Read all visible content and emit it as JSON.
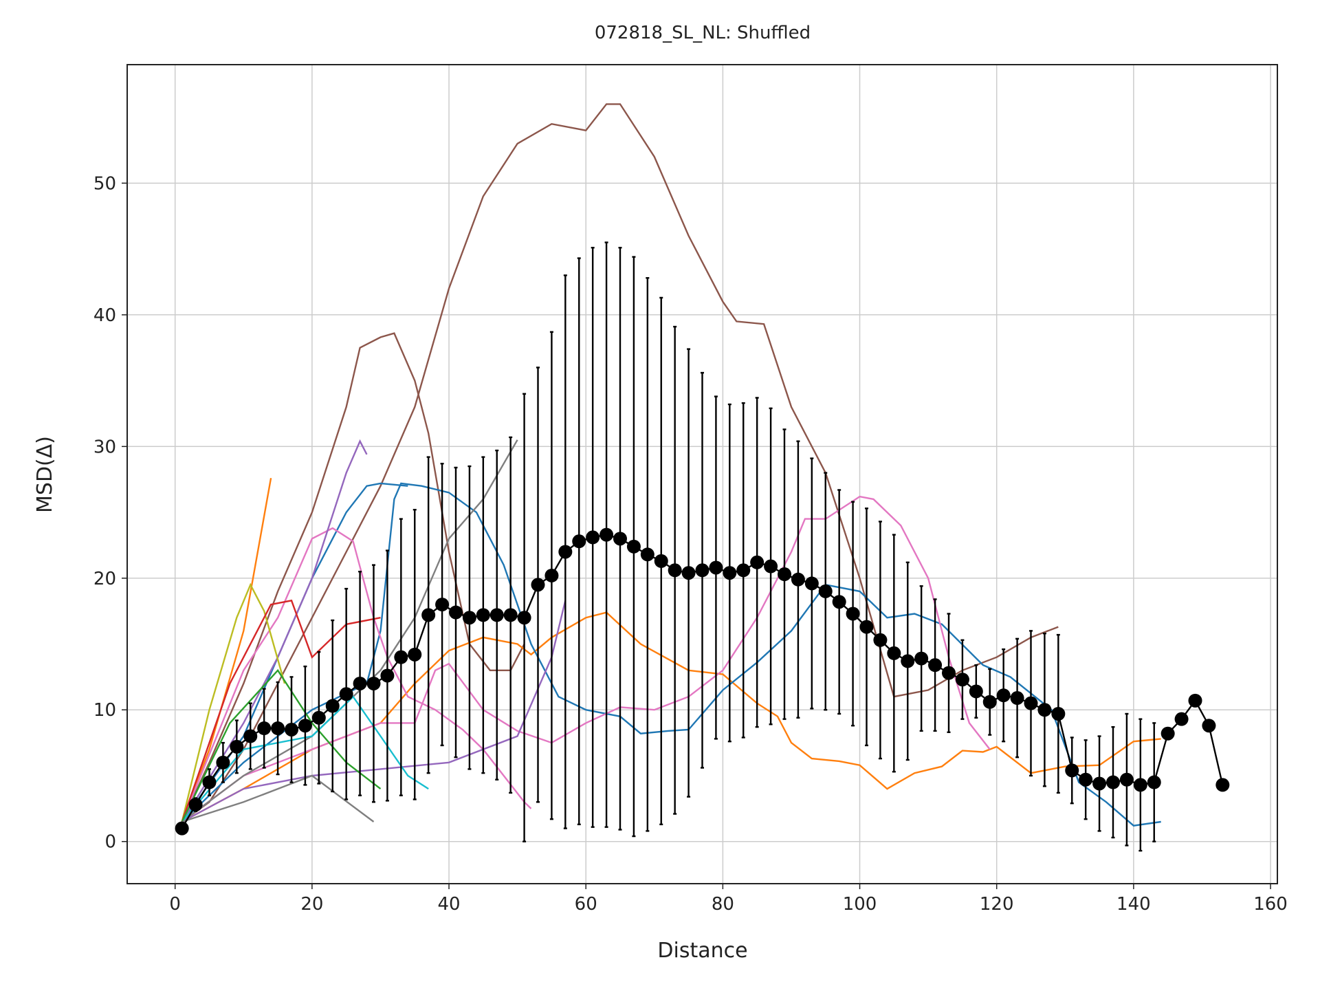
{
  "chart_data": {
    "type": "line",
    "title": "072818_SL_NL: Shuffled",
    "x_label": "Distance",
    "y_label": "MSD(Δ)",
    "xlim": [
      -7,
      161
    ],
    "ylim": [
      -3.2,
      59
    ],
    "xticks": [
      0,
      20,
      40,
      60,
      80,
      100,
      120,
      140,
      160
    ],
    "yticks": [
      0,
      10,
      20,
      30,
      40,
      50
    ],
    "grid": true,
    "series": [
      {
        "color": "#8c564b",
        "x": [
          1,
          5,
          10,
          15,
          20,
          25,
          30,
          35,
          40,
          45,
          50,
          55,
          60,
          63,
          65,
          70,
          75,
          80,
          82,
          86,
          90,
          95,
          100,
          105,
          110,
          115,
          120,
          125,
          129
        ],
        "values": [
          1.5,
          3,
          7,
          12,
          17,
          22,
          27,
          33,
          42,
          49,
          53,
          54.5,
          54,
          56,
          56,
          52,
          46,
          41,
          39.5,
          39.3,
          33,
          28,
          20,
          11,
          11.5,
          13,
          14,
          15.5,
          16.3
        ]
      },
      {
        "color": "#8c564b",
        "x": [
          1,
          5,
          10,
          15,
          20,
          25,
          27,
          30,
          32,
          35,
          37,
          40,
          43,
          46,
          49,
          51
        ],
        "values": [
          1.5,
          6,
          12,
          19,
          25,
          33,
          37.5,
          38.3,
          38.6,
          35,
          31,
          22,
          15,
          13,
          13,
          15
        ]
      },
      {
        "color": "#ff7f0e",
        "x": [
          1,
          10,
          20,
          30,
          35,
          40,
          45,
          50,
          52,
          55,
          60,
          63,
          68,
          75,
          80,
          85,
          88,
          90,
          93,
          97,
          100,
          104,
          108,
          112,
          115,
          118,
          120,
          125,
          130,
          135,
          140,
          144
        ],
        "values": [
          1.5,
          4,
          7,
          9,
          12,
          14.5,
          15.5,
          15,
          14.2,
          15.5,
          17,
          17.4,
          15,
          13,
          12.7,
          10.5,
          9.5,
          7.5,
          6.3,
          6.1,
          5.8,
          4,
          5.2,
          5.7,
          6.9,
          6.8,
          7.2,
          5.2,
          5.7,
          5.8,
          7.6,
          7.8
        ]
      },
      {
        "color": "#ff7f0e",
        "x": [
          1,
          5,
          10,
          14
        ],
        "values": [
          1.5,
          7,
          16,
          27.6
        ]
      },
      {
        "color": "#1f77b4",
        "x": [
          1,
          10,
          20,
          28,
          30,
          32,
          33,
          36,
          40,
          44,
          48,
          52,
          56,
          60,
          65,
          68,
          72,
          75,
          80,
          85,
          90,
          95,
          100,
          104,
          108,
          112,
          118,
          122,
          128,
          132,
          136,
          140,
          144
        ],
        "values": [
          1.5,
          6,
          10,
          12,
          16,
          26,
          27.2,
          27,
          26.5,
          25,
          21,
          15,
          11,
          10,
          9.5,
          8.2,
          8.4,
          8.5,
          11.5,
          13.6,
          16,
          19.5,
          19,
          17,
          17.3,
          16.5,
          13.4,
          12.5,
          10,
          4.5,
          3,
          1.2,
          1.5
        ]
      },
      {
        "color": "#1f77b4",
        "x": [
          1,
          10,
          20,
          25,
          28,
          30,
          34
        ],
        "values": [
          1.5,
          8,
          20,
          25,
          27,
          27.2,
          27
        ]
      },
      {
        "color": "#e377c2",
        "x": [
          1,
          10,
          20,
          30,
          35,
          38,
          40,
          45,
          50,
          55,
          60,
          65,
          70,
          75,
          80,
          85,
          90,
          92,
          95,
          100,
          102,
          106,
          110,
          113,
          116,
          119
        ],
        "values": [
          1.5,
          5,
          7,
          9,
          9,
          13,
          13.5,
          10,
          8.4,
          7.5,
          9,
          10.2,
          10,
          11,
          13,
          17,
          22,
          24.5,
          24.5,
          26.2,
          26,
          24,
          20,
          14,
          9,
          7
        ]
      },
      {
        "color": "#e377c2",
        "x": [
          1,
          10,
          15,
          20,
          23,
          26,
          29,
          31,
          34,
          38,
          42,
          45,
          48,
          51,
          52
        ],
        "values": [
          1.5,
          13,
          17,
          23,
          23.8,
          22.8,
          17,
          14,
          11,
          10,
          8.5,
          7,
          5,
          3,
          2.5
        ]
      },
      {
        "color": "#7f7f7f",
        "x": [
          1,
          10,
          20,
          30,
          35,
          40,
          45,
          50
        ],
        "values": [
          1.5,
          5,
          8,
          13,
          17,
          23,
          26,
          30.5
        ]
      },
      {
        "color": "#9467bd",
        "x": [
          1,
          10,
          20,
          30,
          40,
          50,
          55,
          57
        ],
        "values": [
          1.5,
          4,
          5,
          5.5,
          6,
          8,
          14,
          18.3
        ]
      },
      {
        "color": "#9467bd",
        "x": [
          1,
          10,
          15,
          20,
          25,
          27,
          28
        ],
        "values": [
          1.5,
          9,
          14,
          20,
          28,
          30.4,
          29.4
        ]
      },
      {
        "color": "#bcbd22",
        "x": [
          1,
          5,
          9,
          11,
          13,
          16
        ],
        "values": [
          1.5,
          10,
          17,
          19.5,
          17.5,
          12
        ]
      },
      {
        "color": "#d62728",
        "x": [
          1,
          8,
          14,
          17,
          20,
          25,
          30
        ],
        "values": [
          1.5,
          12,
          18,
          18.3,
          14,
          16.5,
          17
        ]
      },
      {
        "color": "#17becf",
        "x": [
          1,
          10,
          20,
          26,
          30,
          34,
          37
        ],
        "values": [
          1.5,
          7,
          8,
          11,
          8,
          5,
          4
        ]
      },
      {
        "color": "#2ca02c",
        "x": [
          1,
          8,
          15,
          20,
          25,
          30
        ],
        "values": [
          1.5,
          9,
          13,
          9,
          6,
          4
        ]
      },
      {
        "color": "#7f7f7f",
        "x": [
          1,
          10,
          20,
          29
        ],
        "values": [
          1.5,
          3,
          5,
          1.5
        ]
      }
    ],
    "mean": {
      "color": "#000000",
      "x": [
        1,
        3,
        5,
        7,
        9,
        11,
        13,
        15,
        17,
        19,
        21,
        23,
        25,
        27,
        29,
        31,
        33,
        35,
        37,
        39,
        41,
        43,
        45,
        47,
        49,
        51,
        53,
        55,
        57,
        59,
        61,
        63,
        65,
        67,
        69,
        71,
        73,
        75,
        77,
        79,
        81,
        83,
        85,
        87,
        89,
        91,
        93,
        95,
        97,
        99,
        101,
        103,
        105,
        107,
        109,
        111,
        113,
        115,
        117,
        119,
        121,
        123,
        125,
        127,
        129,
        131,
        133,
        135,
        137,
        139,
        141,
        143,
        145,
        147,
        149,
        151,
        153
      ],
      "values": [
        1.0,
        2.8,
        4.5,
        6.0,
        7.2,
        8.0,
        8.6,
        8.6,
        8.5,
        8.8,
        9.4,
        10.3,
        11.2,
        12.0,
        12.0,
        12.6,
        14.0,
        14.2,
        17.2,
        18.0,
        17.4,
        17.0,
        17.2,
        17.2,
        17.2,
        17.0,
        19.5,
        20.2,
        22.0,
        22.8,
        23.1,
        23.3,
        23.0,
        22.4,
        21.8,
        21.3,
        20.6,
        20.4,
        20.6,
        20.8,
        20.4,
        20.6,
        21.2,
        20.9,
        20.3,
        19.9,
        19.6,
        19.0,
        18.2,
        17.3,
        16.3,
        15.3,
        14.3,
        13.7,
        13.9,
        13.4,
        12.8,
        12.3,
        11.4,
        10.6,
        11.1,
        10.9,
        10.5,
        10.0,
        9.7,
        5.4,
        4.7,
        4.4,
        4.5,
        4.7,
        4.3,
        4.5,
        8.2,
        9.3,
        10.7,
        8.8,
        4.3
      ],
      "errors": [
        0,
        0.5,
        1,
        1.5,
        2,
        2.5,
        3,
        3.5,
        4,
        4.5,
        5,
        6.5,
        8,
        8.5,
        9,
        9.5,
        10.5,
        11,
        12,
        10.7,
        11,
        11.5,
        12,
        12.5,
        13.5,
        17,
        16.5,
        18.5,
        21,
        21.5,
        22,
        22.2,
        22.1,
        22,
        21,
        20,
        18.5,
        17,
        15,
        13,
        12.8,
        12.7,
        12.5,
        12,
        11,
        10.5,
        9.5,
        9,
        8.5,
        8.5,
        9,
        9,
        9,
        7.5,
        5.5,
        5,
        4.5,
        3,
        2,
        2.5,
        3.5,
        4.5,
        5.5,
        5.8,
        6,
        2.5,
        3,
        3.6,
        4.2,
        5,
        5,
        4.5,
        0,
        0,
        0,
        0,
        0
      ]
    }
  }
}
